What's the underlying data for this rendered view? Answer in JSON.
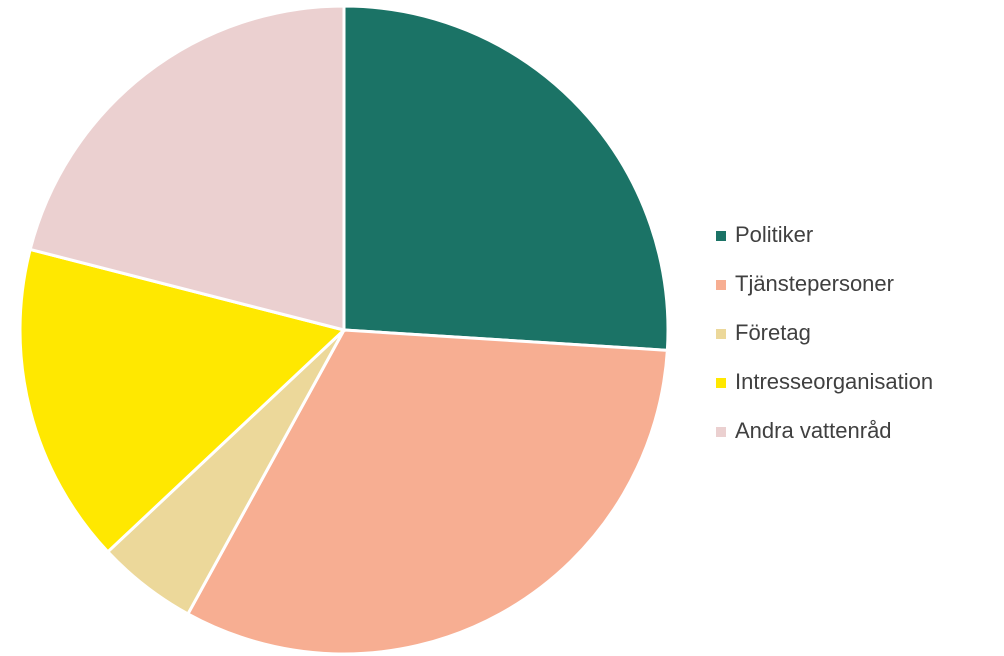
{
  "chart_data": {
    "type": "pie",
    "categories": [
      "Politiker",
      "Tjänstepersoner",
      "Företag",
      "Intresseorganisation",
      "Andra vattenråd"
    ],
    "values": [
      26,
      32,
      5,
      16,
      21
    ],
    "colors": [
      "#1b7366",
      "#f7ae92",
      "#ecd89a",
      "#ffe800",
      "#ebd0d0"
    ],
    "legend": "right"
  }
}
